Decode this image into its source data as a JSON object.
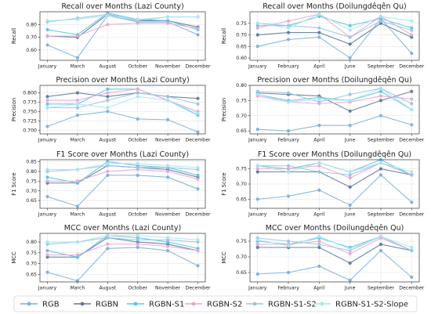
{
  "legend": {
    "entries": [
      {
        "name": "RGB",
        "color": "#7fb0d9"
      },
      {
        "name": "RGBN",
        "color": "#5c7b9b"
      },
      {
        "name": "RGBN-S1",
        "color": "#5ec3e0"
      },
      {
        "name": "RGBN-S2",
        "color": "#e8a8d2"
      },
      {
        "name": "RGBN-S1-S2",
        "color": "#9cc3e6"
      },
      {
        "name": "RGBN-S1-S2-Slope",
        "color": "#a8e6ef"
      }
    ]
  },
  "chart_data": [
    {
      "type": "line",
      "title": "Recall over Months (Lazi County)",
      "xlabel": "",
      "ylabel": "Recall",
      "categories": [
        "January",
        "March",
        "August",
        "October",
        "November",
        "December"
      ],
      "ylim": [
        0.52,
        0.9
      ],
      "yticks": [
        0.6,
        0.7,
        0.8
      ],
      "grid": true,
      "series": [
        {
          "name": "RGB",
          "values": [
            0.64,
            0.54,
            0.87,
            0.82,
            0.82,
            0.72
          ]
        },
        {
          "name": "RGBN",
          "values": [
            0.71,
            0.7,
            0.88,
            0.83,
            0.83,
            0.78
          ]
        },
        {
          "name": "RGBN-S1",
          "values": [
            0.76,
            0.72,
            0.89,
            0.84,
            0.83,
            0.76
          ]
        },
        {
          "name": "RGBN-S2",
          "values": [
            0.71,
            0.71,
            0.8,
            0.81,
            0.81,
            0.77
          ]
        },
        {
          "name": "RGBN-S1-S2",
          "values": [
            0.82,
            0.85,
            0.88,
            0.83,
            0.86,
            0.86
          ]
        },
        {
          "name": "RGBN-S1-S2-Slope",
          "values": [
            0.83,
            0.84,
            0.87,
            0.84,
            0.86,
            0.86
          ]
        }
      ]
    },
    {
      "type": "line",
      "title": "Recall over Months (Doilungdêqên Qu)",
      "xlabel": "",
      "ylabel": "Recall",
      "categories": [
        "January",
        "February",
        "April",
        "June",
        "September",
        "December"
      ],
      "ylim": [
        0.59,
        0.8
      ],
      "yticks": [
        0.6,
        0.65,
        0.7,
        0.75
      ],
      "grid": true,
      "series": [
        {
          "name": "RGB",
          "values": [
            0.65,
            0.68,
            0.69,
            0.6,
            0.77,
            0.62
          ]
        },
        {
          "name": "RGBN",
          "values": [
            0.7,
            0.71,
            0.71,
            0.66,
            0.75,
            0.69
          ]
        },
        {
          "name": "RGBN-S1",
          "values": [
            0.74,
            0.74,
            0.78,
            0.74,
            0.77,
            0.73
          ]
        },
        {
          "name": "RGBN-S2",
          "values": [
            0.73,
            0.76,
            0.79,
            0.69,
            0.78,
            0.7
          ]
        },
        {
          "name": "RGBN-S1-S2",
          "values": [
            0.75,
            0.74,
            0.73,
            0.69,
            0.76,
            0.72
          ]
        },
        {
          "name": "RGBN-S1-S2-Slope",
          "values": [
            0.75,
            0.73,
            0.79,
            0.72,
            0.78,
            0.76
          ]
        }
      ]
    },
    {
      "type": "line",
      "title": "Precision over Months (Lazi County)",
      "xlabel": "",
      "ylabel": "Precision",
      "categories": [
        "January",
        "March",
        "August",
        "October",
        "November",
        "December"
      ],
      "ylim": [
        0.69,
        0.82
      ],
      "yticks": [
        0.7,
        0.725,
        0.75,
        0.775,
        0.8
      ],
      "grid": true,
      "series": [
        {
          "name": "RGB",
          "values": [
            0.71,
            0.74,
            0.75,
            0.73,
            0.728,
            0.695
          ]
        },
        {
          "name": "RGBN",
          "values": [
            0.79,
            0.8,
            0.79,
            0.8,
            0.79,
            0.785
          ]
        },
        {
          "name": "RGBN-S1",
          "values": [
            0.77,
            0.77,
            0.81,
            0.81,
            0.78,
            0.74
          ]
        },
        {
          "name": "RGBN-S2",
          "values": [
            0.78,
            0.78,
            0.8,
            0.81,
            0.78,
            0.75
          ]
        },
        {
          "name": "RGBN-S1-S2",
          "values": [
            0.76,
            0.76,
            0.78,
            0.8,
            0.79,
            0.77
          ]
        },
        {
          "name": "RGBN-S1-S2-Slope",
          "values": [
            0.76,
            0.77,
            0.76,
            0.79,
            0.78,
            0.745
          ]
        }
      ]
    },
    {
      "type": "line",
      "title": "Precision over Months (Doilungdêqên Qu)",
      "xlabel": "",
      "ylabel": "Precision",
      "categories": [
        "January",
        "February",
        "April",
        "June",
        "September",
        "December"
      ],
      "ylim": [
        0.64,
        0.8
      ],
      "yticks": [
        0.65,
        0.7,
        0.75,
        0.8
      ],
      "grid": true,
      "series": [
        {
          "name": "RGB",
          "values": [
            0.655,
            0.65,
            0.668,
            0.668,
            0.7,
            0.67
          ]
        },
        {
          "name": "RGBN",
          "values": [
            0.775,
            0.77,
            0.765,
            0.715,
            0.75,
            0.78
          ]
        },
        {
          "name": "RGBN-S1",
          "values": [
            0.77,
            0.75,
            0.76,
            0.75,
            0.78,
            0.72
          ]
        },
        {
          "name": "RGBN-S2",
          "values": [
            0.765,
            0.745,
            0.74,
            0.745,
            0.765,
            0.755
          ]
        },
        {
          "name": "RGBN-S1-S2",
          "values": [
            0.78,
            0.775,
            0.745,
            0.77,
            0.79,
            0.74
          ]
        },
        {
          "name": "RGBN-S1-S2-Slope",
          "values": [
            0.77,
            0.745,
            0.755,
            0.75,
            0.79,
            0.72
          ]
        }
      ]
    },
    {
      "type": "line",
      "title": "F1 Score over Months (Lazi County)",
      "xlabel": "",
      "ylabel": "F1 Score",
      "categories": [
        "January",
        "March",
        "August",
        "October",
        "November",
        "December"
      ],
      "ylim": [
        0.61,
        0.86
      ],
      "yticks": [
        0.65,
        0.7,
        0.75,
        0.8,
        0.85
      ],
      "grid": true,
      "series": [
        {
          "name": "RGB",
          "values": [
            0.67,
            0.62,
            0.78,
            0.78,
            0.77,
            0.71
          ]
        },
        {
          "name": "RGBN",
          "values": [
            0.74,
            0.74,
            0.83,
            0.82,
            0.81,
            0.77
          ]
        },
        {
          "name": "RGBN-S1",
          "values": [
            0.77,
            0.74,
            0.85,
            0.83,
            0.82,
            0.78
          ]
        },
        {
          "name": "RGBN-S2",
          "values": [
            0.75,
            0.75,
            0.8,
            0.81,
            0.8,
            0.76
          ]
        },
        {
          "name": "RGBN-S1-S2",
          "values": [
            0.8,
            0.81,
            0.83,
            0.82,
            0.82,
            0.81
          ]
        },
        {
          "name": "RGBN-S1-S2-Slope",
          "values": [
            0.81,
            0.81,
            0.84,
            0.84,
            0.83,
            0.82
          ]
        }
      ]
    },
    {
      "type": "line",
      "title": "F1 Score over Months (Doilungdêqên Qu)",
      "xlabel": "",
      "ylabel": "F1 Score",
      "categories": [
        "January",
        "February",
        "April",
        "June",
        "September",
        "December"
      ],
      "ylim": [
        0.62,
        0.78
      ],
      "yticks": [
        0.65,
        0.7,
        0.75
      ],
      "grid": true,
      "series": [
        {
          "name": "RGB",
          "values": [
            0.65,
            0.66,
            0.68,
            0.63,
            0.73,
            0.64
          ]
        },
        {
          "name": "RGBN",
          "values": [
            0.74,
            0.74,
            0.74,
            0.69,
            0.75,
            0.73
          ]
        },
        {
          "name": "RGBN-S1",
          "values": [
            0.76,
            0.75,
            0.77,
            0.74,
            0.78,
            0.73
          ]
        },
        {
          "name": "RGBN-S2",
          "values": [
            0.75,
            0.75,
            0.76,
            0.72,
            0.77,
            0.73
          ]
        },
        {
          "name": "RGBN-S1-S2",
          "values": [
            0.76,
            0.76,
            0.74,
            0.73,
            0.77,
            0.73
          ]
        },
        {
          "name": "RGBN-S1-S2-Slope",
          "values": [
            0.76,
            0.74,
            0.77,
            0.74,
            0.77,
            0.74
          ]
        }
      ]
    },
    {
      "type": "line",
      "title": "MCC over Months (Lazi County)",
      "xlabel": "",
      "ylabel": "MCC",
      "categories": [
        "January",
        "March",
        "August",
        "October",
        "November",
        "December"
      ],
      "ylim": [
        0.615,
        0.84
      ],
      "yticks": [
        0.65,
        0.7,
        0.75,
        0.8
      ],
      "grid": true,
      "series": [
        {
          "name": "RGB",
          "values": [
            0.66,
            0.62,
            0.77,
            0.775,
            0.76,
            0.69
          ]
        },
        {
          "name": "RGBN",
          "values": [
            0.73,
            0.73,
            0.82,
            0.8,
            0.79,
            0.76
          ]
        },
        {
          "name": "RGBN-S1",
          "values": [
            0.76,
            0.73,
            0.83,
            0.82,
            0.8,
            0.77
          ]
        },
        {
          "name": "RGBN-S2",
          "values": [
            0.74,
            0.74,
            0.79,
            0.79,
            0.78,
            0.76
          ]
        },
        {
          "name": "RGBN-S1-S2",
          "values": [
            0.79,
            0.8,
            0.82,
            0.81,
            0.81,
            0.8
          ]
        },
        {
          "name": "RGBN-S1-S2-Slope",
          "values": [
            0.8,
            0.8,
            0.83,
            0.83,
            0.82,
            0.81
          ]
        }
      ]
    },
    {
      "type": "line",
      "title": "MCC over Months (Doilungdêqên Qu)",
      "xlabel": "",
      "ylabel": "MCC",
      "categories": [
        "January",
        "February",
        "April",
        "June",
        "September",
        "December"
      ],
      "ylim": [
        0.62,
        0.775
      ],
      "yticks": [
        0.65,
        0.7,
        0.75
      ],
      "grid": true,
      "series": [
        {
          "name": "RGB",
          "values": [
            0.645,
            0.65,
            0.67,
            0.625,
            0.72,
            0.635
          ]
        },
        {
          "name": "RGBN",
          "values": [
            0.73,
            0.73,
            0.73,
            0.68,
            0.74,
            0.72
          ]
        },
        {
          "name": "RGBN-S1",
          "values": [
            0.75,
            0.74,
            0.76,
            0.73,
            0.765,
            0.72
          ]
        },
        {
          "name": "RGBN-S2",
          "values": [
            0.74,
            0.74,
            0.75,
            0.71,
            0.76,
            0.72
          ]
        },
        {
          "name": "RGBN-S1-S2",
          "values": [
            0.76,
            0.75,
            0.74,
            0.72,
            0.765,
            0.72
          ]
        },
        {
          "name": "RGBN-S1-S2-Slope",
          "values": [
            0.755,
            0.735,
            0.765,
            0.725,
            0.765,
            0.73
          ]
        }
      ]
    }
  ]
}
